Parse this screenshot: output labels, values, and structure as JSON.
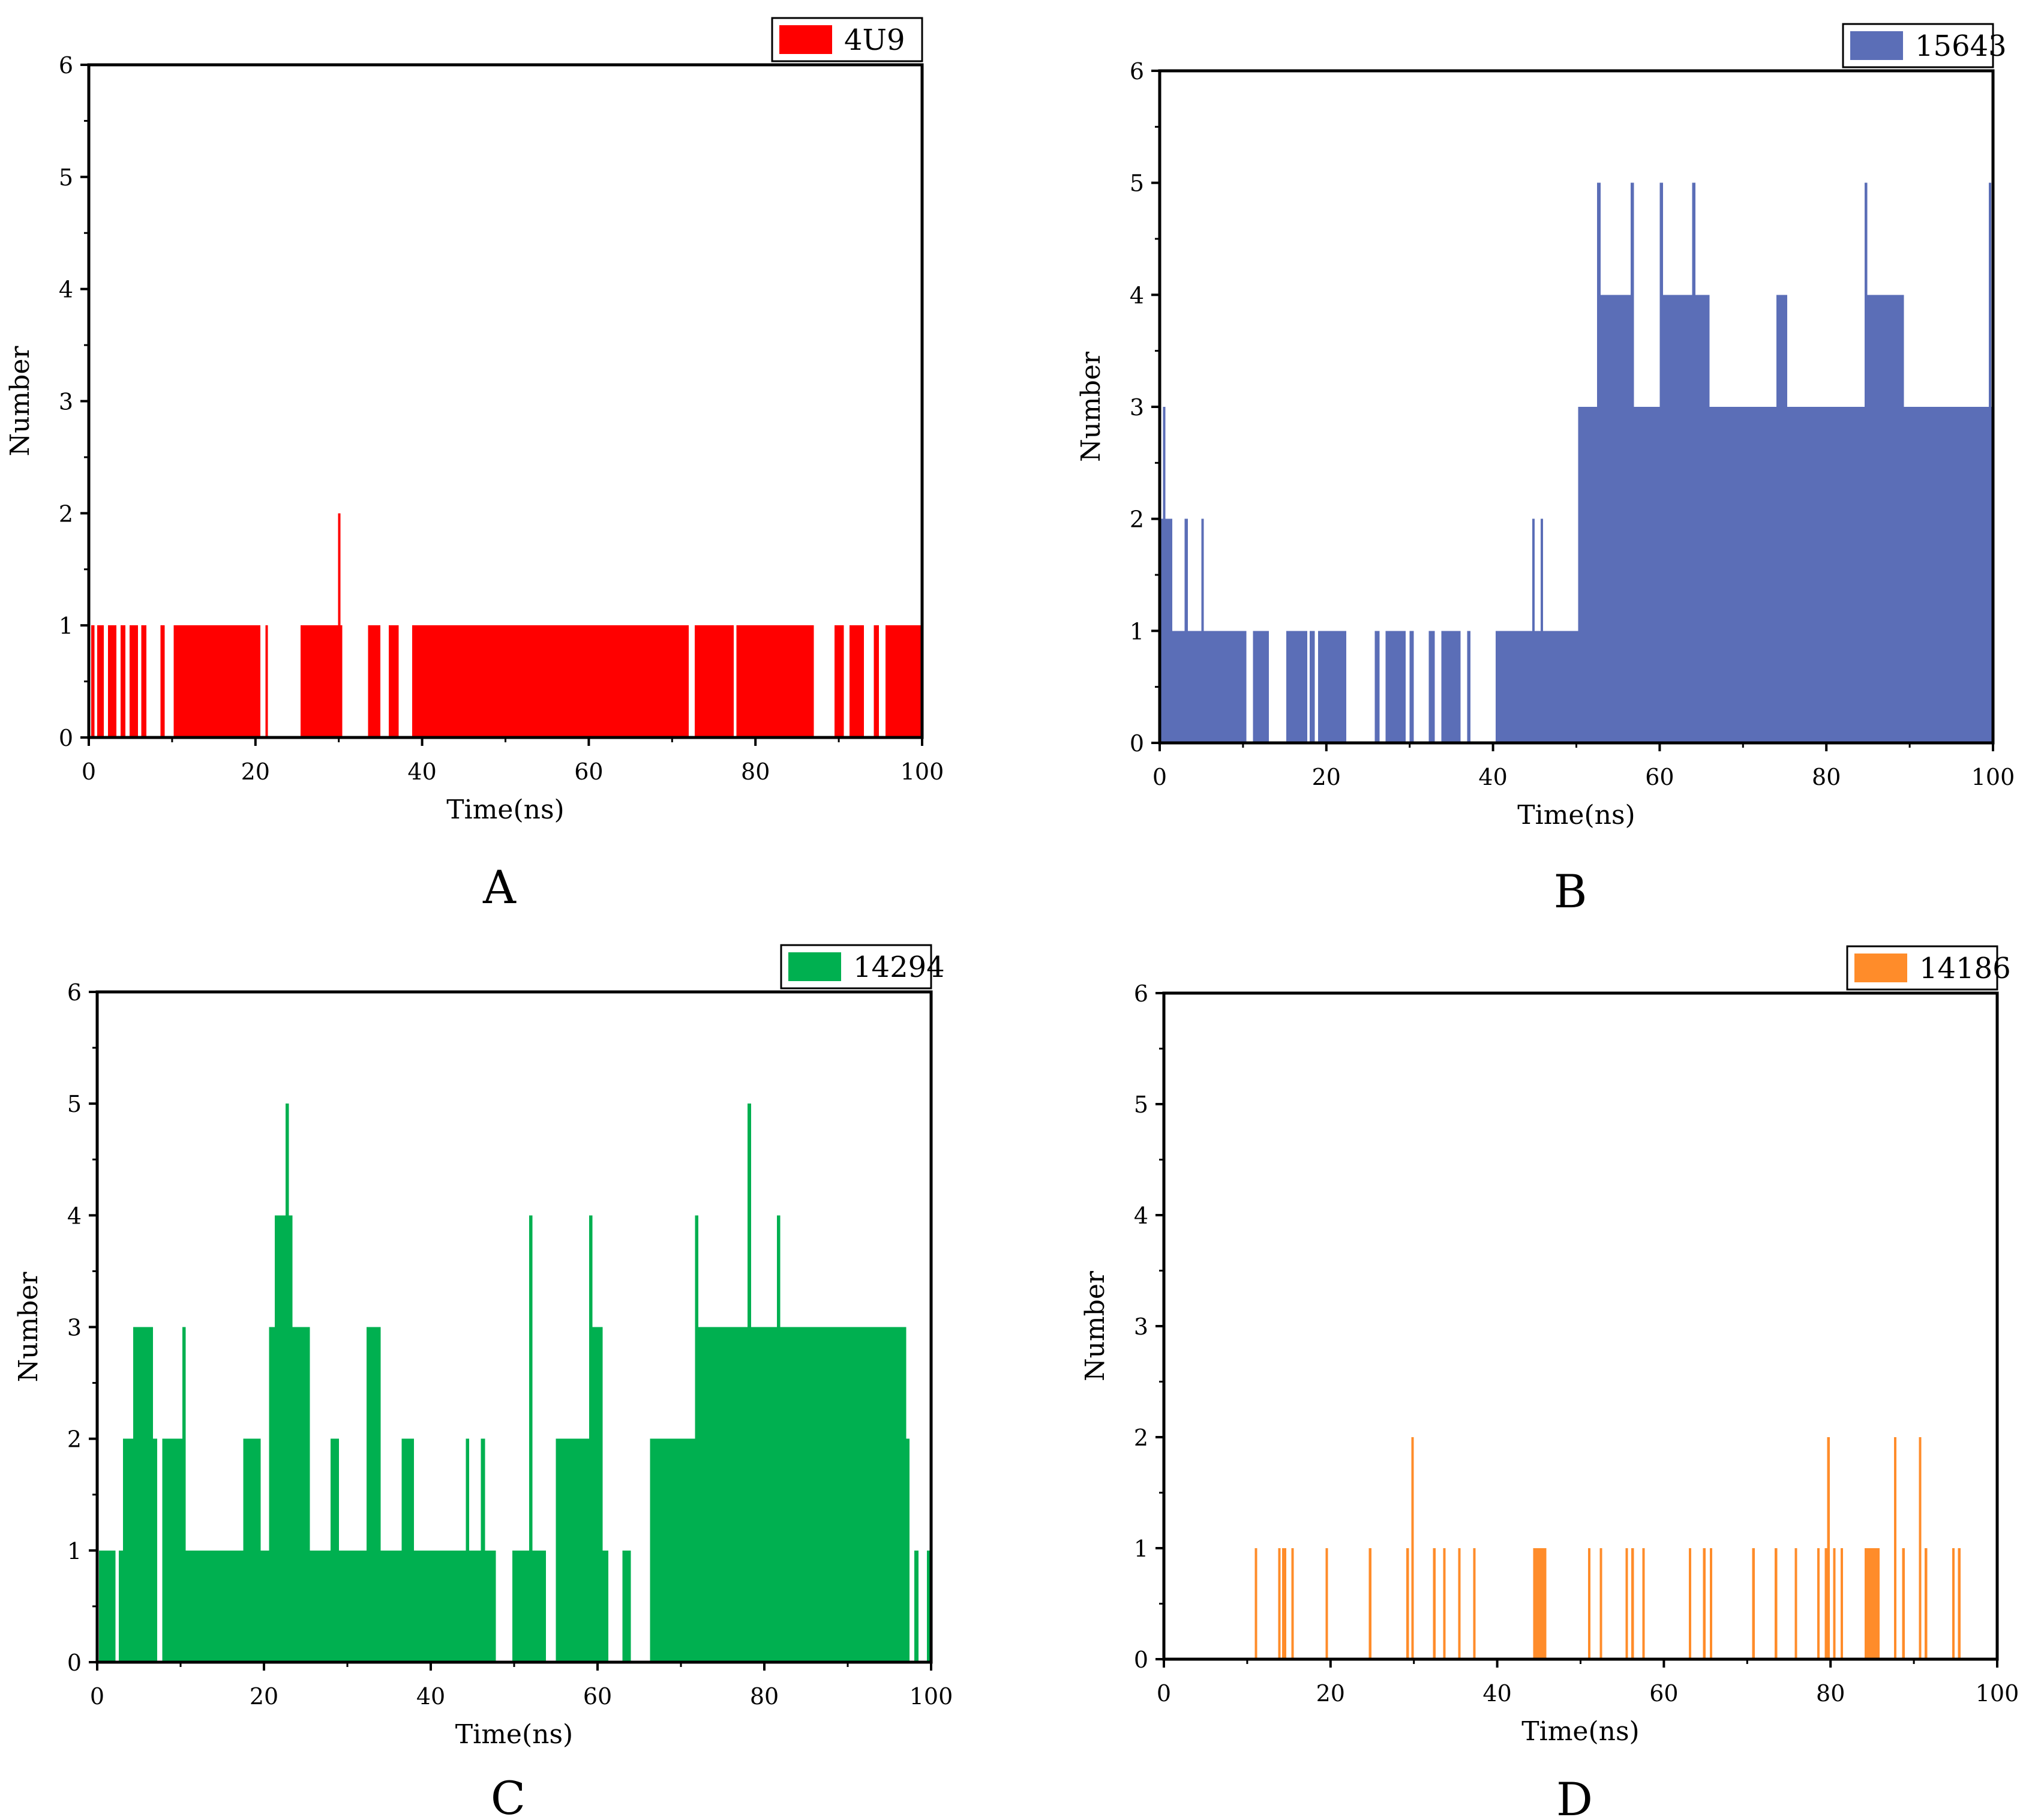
{
  "chart_data": [
    {
      "type": "bar",
      "panel_label": "A",
      "legend": "4U9",
      "color": "#ff0000",
      "xlabel": "Time(ns)",
      "ylabel": "Number",
      "xlim": [
        0,
        100
      ],
      "ylim": [
        0,
        6
      ],
      "xticks": [
        "0",
        "20",
        "40",
        "60",
        "80",
        "100"
      ],
      "yticks": [
        "0",
        "1",
        "2",
        "3",
        "4",
        "5",
        "6"
      ],
      "legend_position": "top-right",
      "segments": [
        [
          0.3,
          0.7,
          1
        ],
        [
          1.0,
          1.8,
          1
        ],
        [
          2.3,
          3.3,
          1
        ],
        [
          3.8,
          4.4,
          1
        ],
        [
          4.9,
          5.9,
          1
        ],
        [
          6.3,
          6.9,
          1
        ],
        [
          8.6,
          9.1,
          1
        ],
        [
          10.2,
          20.6,
          1
        ],
        [
          21.2,
          21.5,
          1
        ],
        [
          25.4,
          29.9,
          1
        ],
        [
          29.9,
          30.2,
          2
        ],
        [
          30.2,
          30.4,
          1
        ],
        [
          33.5,
          35.0,
          1
        ],
        [
          36.0,
          37.2,
          1
        ],
        [
          38.8,
          72.0,
          1
        ],
        [
          72.7,
          77.4,
          1
        ],
        [
          77.7,
          87.0,
          1
        ],
        [
          89.5,
          90.6,
          1
        ],
        [
          91.3,
          93.0,
          1
        ],
        [
          94.2,
          94.8,
          1
        ],
        [
          95.6,
          100.0,
          1
        ]
      ]
    },
    {
      "type": "bar",
      "panel_label": "B",
      "legend": "15643",
      "color": "#5b6eb7",
      "xlabel": "Time(ns)",
      "ylabel": "Number",
      "xlim": [
        0,
        100
      ],
      "ylim": [
        0,
        6
      ],
      "xticks": [
        "0",
        "20",
        "40",
        "60",
        "80",
        "100"
      ],
      "yticks": [
        "0",
        "1",
        "2",
        "3",
        "4",
        "5",
        "6"
      ],
      "legend_position": "top-right",
      "segments": [
        [
          0,
          0.4,
          2
        ],
        [
          0.4,
          0.7,
          3
        ],
        [
          0.7,
          1.5,
          2
        ],
        [
          1.5,
          3.0,
          1
        ],
        [
          3.0,
          3.4,
          2
        ],
        [
          3.4,
          5.0,
          1
        ],
        [
          5.0,
          5.3,
          2
        ],
        [
          5.3,
          10.4,
          1
        ],
        [
          11.2,
          13.1,
          1
        ],
        [
          15.2,
          17.7,
          1
        ],
        [
          18.0,
          18.6,
          1
        ],
        [
          19.0,
          22.4,
          1
        ],
        [
          25.8,
          26.4,
          1
        ],
        [
          27.1,
          29.5,
          1
        ],
        [
          30.0,
          30.5,
          1
        ],
        [
          32.3,
          33.0,
          1
        ],
        [
          33.8,
          36.1,
          1
        ],
        [
          36.9,
          37.3,
          1
        ],
        [
          40.3,
          44.7,
          1
        ],
        [
          44.7,
          45.0,
          2
        ],
        [
          45.0,
          45.7,
          1
        ],
        [
          45.7,
          46.0,
          2
        ],
        [
          46.0,
          50.2,
          1
        ],
        [
          50.2,
          52.5,
          3
        ],
        [
          52.5,
          52.9,
          5
        ],
        [
          52.9,
          56.5,
          4
        ],
        [
          56.5,
          56.9,
          5
        ],
        [
          56.9,
          60.0,
          3
        ],
        [
          60.0,
          60.4,
          5
        ],
        [
          60.4,
          63.9,
          4
        ],
        [
          63.9,
          64.3,
          5
        ],
        [
          64.3,
          66.0,
          4
        ],
        [
          66.0,
          74.0,
          3
        ],
        [
          74.0,
          75.3,
          4
        ],
        [
          75.3,
          84.6,
          3
        ],
        [
          84.6,
          84.9,
          5
        ],
        [
          84.9,
          89.3,
          4
        ],
        [
          89.3,
          99.5,
          3
        ],
        [
          99.5,
          99.8,
          5
        ],
        [
          99.8,
          100.0,
          3
        ]
      ]
    },
    {
      "type": "bar",
      "panel_label": "C",
      "legend": "14294",
      "color": "#00b050",
      "xlabel": "Time(ns)",
      "ylabel": "Number",
      "xlim": [
        0,
        100
      ],
      "ylim": [
        0,
        6
      ],
      "xticks": [
        "0",
        "20",
        "40",
        "60",
        "80",
        "100"
      ],
      "yticks": [
        "0",
        "1",
        "2",
        "3",
        "4",
        "5",
        "6"
      ],
      "legend_position": "top-right",
      "segments": [
        [
          0.2,
          2.2,
          1
        ],
        [
          2.6,
          3.1,
          1
        ],
        [
          3.1,
          4.3,
          2
        ],
        [
          4.3,
          6.7,
          3
        ],
        [
          6.7,
          7.2,
          2
        ],
        [
          7.8,
          10.2,
          2
        ],
        [
          10.2,
          10.6,
          3
        ],
        [
          10.6,
          17.5,
          1
        ],
        [
          17.5,
          19.6,
          2
        ],
        [
          19.6,
          20.6,
          1
        ],
        [
          20.6,
          21.3,
          3
        ],
        [
          21.3,
          22.6,
          4
        ],
        [
          22.6,
          23.0,
          5
        ],
        [
          23.0,
          23.4,
          4
        ],
        [
          23.4,
          25.5,
          3
        ],
        [
          25.5,
          28.0,
          1
        ],
        [
          28.0,
          29.0,
          2
        ],
        [
          29.0,
          32.3,
          1
        ],
        [
          32.3,
          34.0,
          3
        ],
        [
          34.0,
          36.5,
          1
        ],
        [
          36.5,
          38.0,
          2
        ],
        [
          38.0,
          44.2,
          1
        ],
        [
          44.2,
          44.6,
          2
        ],
        [
          44.6,
          46.0,
          1
        ],
        [
          46.0,
          46.5,
          2
        ],
        [
          46.5,
          47.8,
          1
        ],
        [
          49.8,
          51.8,
          1
        ],
        [
          51.8,
          52.2,
          4
        ],
        [
          52.2,
          53.8,
          1
        ],
        [
          55.0,
          59.0,
          2
        ],
        [
          59.0,
          59.4,
          4
        ],
        [
          59.4,
          60.6,
          3
        ],
        [
          60.6,
          61.3,
          1
        ],
        [
          63.0,
          64.0,
          1
        ],
        [
          66.3,
          71.7,
          2
        ],
        [
          71.7,
          72.1,
          4
        ],
        [
          72.1,
          78.0,
          3
        ],
        [
          78.0,
          78.4,
          5
        ],
        [
          78.4,
          81.5,
          3
        ],
        [
          81.5,
          81.9,
          4
        ],
        [
          81.9,
          97.0,
          3
        ],
        [
          97.0,
          97.4,
          2
        ],
        [
          98.0,
          98.5,
          1
        ],
        [
          99.5,
          100.0,
          1
        ]
      ]
    },
    {
      "type": "bar",
      "panel_label": "D",
      "legend": "14186",
      "color": "#ff8c2a",
      "xlabel": "Time(ns)",
      "ylabel": "Number",
      "xlim": [
        0,
        100
      ],
      "ylim": [
        0,
        6
      ],
      "xticks": [
        "0",
        "20",
        "40",
        "60",
        "80",
        "100"
      ],
      "yticks": [
        "0",
        "1",
        "2",
        "3",
        "4",
        "5",
        "6"
      ],
      "legend_position": "top-right",
      "segments": [
        [
          10.9,
          11.2,
          1
        ],
        [
          13.7,
          14.0,
          1
        ],
        [
          14.2,
          14.7,
          1
        ],
        [
          15.3,
          15.6,
          1
        ],
        [
          19.4,
          19.7,
          1
        ],
        [
          24.6,
          24.9,
          1
        ],
        [
          29.1,
          29.4,
          1
        ],
        [
          29.7,
          30.0,
          2
        ],
        [
          32.3,
          32.6,
          1
        ],
        [
          33.5,
          33.8,
          1
        ],
        [
          35.3,
          35.6,
          1
        ],
        [
          37.1,
          37.4,
          1
        ],
        [
          44.3,
          45.9,
          1
        ],
        [
          50.9,
          51.2,
          1
        ],
        [
          52.3,
          52.6,
          1
        ],
        [
          55.4,
          55.7,
          1
        ],
        [
          56.1,
          56.4,
          1
        ],
        [
          57.4,
          57.7,
          1
        ],
        [
          63.0,
          63.3,
          1
        ],
        [
          64.7,
          65.0,
          1
        ],
        [
          65.5,
          65.8,
          1
        ],
        [
          70.6,
          70.9,
          1
        ],
        [
          73.3,
          73.6,
          1
        ],
        [
          75.7,
          76.0,
          1
        ],
        [
          78.4,
          78.7,
          1
        ],
        [
          79.3,
          79.6,
          1
        ],
        [
          79.6,
          79.9,
          2
        ],
        [
          80.3,
          80.6,
          1
        ],
        [
          81.2,
          81.5,
          1
        ],
        [
          84.1,
          85.9,
          1
        ],
        [
          87.6,
          87.9,
          2
        ],
        [
          88.6,
          88.9,
          1
        ],
        [
          90.6,
          90.9,
          2
        ],
        [
          91.3,
          91.6,
          1
        ],
        [
          94.6,
          94.9,
          1
        ],
        [
          95.3,
          95.6,
          1
        ]
      ]
    }
  ]
}
